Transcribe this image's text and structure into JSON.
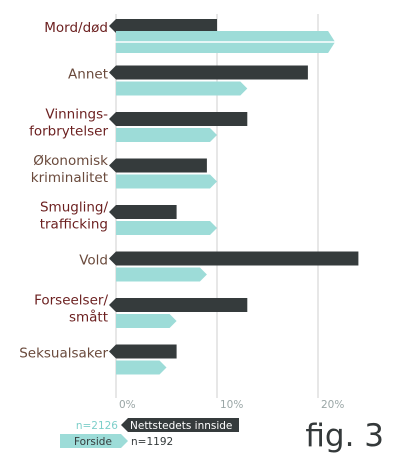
{
  "chart_data": {
    "type": "bar",
    "orientation": "horizontal",
    "categories": [
      [
        "Mord/død"
      ],
      [
        "Annet"
      ],
      [
        "Vinnings-",
        "forbrytelser"
      ],
      [
        "Økonomisk",
        "kriminalitet"
      ],
      [
        "Smugling/",
        "trafficking"
      ],
      [
        "Vold"
      ],
      [
        "Forseelser/",
        "smått"
      ],
      [
        "Seksualsaker"
      ]
    ],
    "series": [
      {
        "name": "Nettstedets innside",
        "values": [
          10,
          19,
          13,
          9,
          6,
          24,
          13,
          6
        ]
      },
      {
        "name": "Forside",
        "values": [
          22,
          13,
          10,
          10,
          10,
          9,
          6,
          5
        ]
      }
    ],
    "overflow_category_index": 0,
    "xticks": [
      "0%",
      "10%",
      "20%"
    ],
    "xtick_values": [
      0,
      10,
      20
    ],
    "xlim": [
      0,
      25
    ],
    "grid": true,
    "legend": [
      {
        "series": 0,
        "n_label": "n=2126",
        "text": "Nettstedets innside"
      },
      {
        "series": 1,
        "n_label": "n=1192",
        "text": "Forside"
      }
    ],
    "legend_position": "bottom-left",
    "figure_label": "fig. 3"
  },
  "colors": {
    "dark": "#353b3c",
    "teal": "#9ddcd8",
    "label_maroon": "#6b1f1f",
    "label_brown": "#6a4a3c",
    "grid": "#cfcfcf",
    "tick": "#9aa6a6",
    "n_teal": "#7ecfca",
    "figure_label": "#34393a"
  }
}
